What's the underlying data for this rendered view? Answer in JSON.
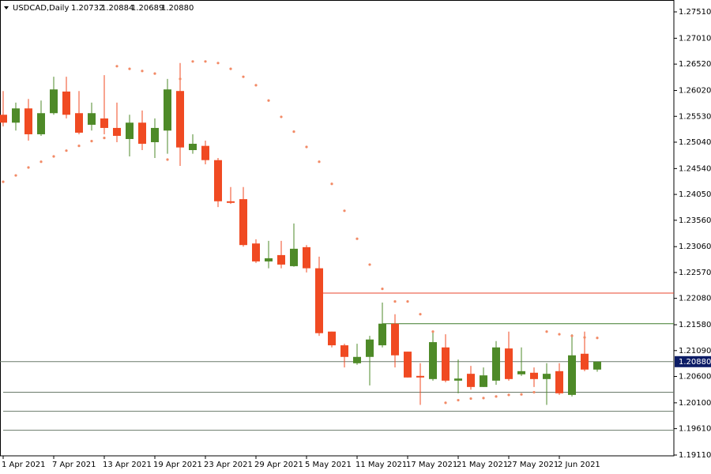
{
  "chart_data": {
    "type": "candlestick",
    "header": {
      "symbol": "USDCAD,Daily",
      "ohlc": [
        "1.20732",
        "1.20884",
        "1.20689",
        "1.20880"
      ]
    },
    "categories": [
      "1 Apr 2021",
      null,
      null,
      null,
      "7 Apr 2021",
      null,
      null,
      null,
      "13 Apr 2021",
      null,
      null,
      null,
      "19 Apr 2021",
      null,
      null,
      null,
      "23 Apr 2021",
      null,
      null,
      null,
      "29 Apr 2021",
      null,
      null,
      null,
      "5 May 2021",
      null,
      null,
      null,
      "11 May 2021",
      null,
      null,
      null,
      "17 May 2021",
      null,
      null,
      null,
      "21 May 2021",
      null,
      null,
      null,
      "27 May 2021",
      null,
      null,
      null,
      "2 Jun 2021",
      null,
      null,
      null
    ],
    "open": [
      1.2556,
      1.2541,
      1.2568,
      1.2519,
      1.2559,
      1.26,
      1.2559,
      1.2537,
      1.2549,
      1.2531,
      1.251,
      1.2541,
      1.2504,
      1.2526,
      1.2601,
      1.2489,
      1.2497,
      1.247,
      1.2392,
      1.2396,
      1.2312,
      1.2278,
      1.229,
      1.2269,
      1.2305,
      1.2265,
      1.2145,
      1.2119,
      1.2085,
      1.2097,
      1.2119,
      1.216,
      1.2107,
      1.2061,
      1.2055,
      1.2115,
      1.2052,
      1.2065,
      1.204,
      1.2052,
      1.2113,
      1.2064,
      1.2067,
      1.2055,
      1.207,
      1.2025,
      1.2103,
      1.2073
    ],
    "high": [
      1.2601,
      1.2579,
      1.2586,
      1.2583,
      1.2628,
      1.2628,
      1.2601,
      1.2579,
      1.2631,
      1.2579,
      1.2556,
      1.2564,
      1.2549,
      1.2624,
      1.2654,
      1.2519,
      1.2507,
      1.2474,
      1.2419,
      1.2419,
      1.232,
      1.2317,
      1.2317,
      1.235,
      1.2309,
      1.2287,
      1.2145,
      1.2122,
      1.2122,
      1.2137,
      1.22,
      1.2178,
      1.2107,
      1.2085,
      1.2145,
      1.214,
      1.2092,
      1.208,
      1.2077,
      1.2127,
      1.2145,
      1.2115,
      1.2077,
      1.2085,
      1.2085,
      1.214,
      1.2145,
      1.2088
    ],
    "low": [
      1.2534,
      1.2526,
      1.2507,
      1.2516,
      1.2556,
      1.2549,
      1.2519,
      1.2526,
      1.2519,
      1.2504,
      1.2477,
      1.2489,
      1.2474,
      1.2482,
      1.2459,
      1.2482,
      1.2462,
      1.2381,
      1.2387,
      1.2306,
      1.2275,
      1.2265,
      1.2265,
      1.2268,
      1.2257,
      1.2137,
      1.2115,
      1.2077,
      1.2082,
      1.2043,
      1.2115,
      1.2077,
      1.2058,
      1.2006,
      1.2052,
      1.2049,
      1.2028,
      1.2035,
      1.204,
      1.2044,
      1.2052,
      1.2061,
      1.204,
      1.2006,
      1.2025,
      1.2022,
      1.207,
      1.2069
    ],
    "close": [
      1.2541,
      1.2568,
      1.2519,
      1.2559,
      1.2604,
      1.2556,
      1.2522,
      1.2559,
      1.2531,
      1.2516,
      1.2541,
      1.2501,
      1.2531,
      1.2604,
      1.2494,
      1.2501,
      1.247,
      1.2392,
      1.2389,
      1.2309,
      1.2278,
      1.2284,
      1.2272,
      1.2302,
      1.2265,
      1.2142,
      1.2119,
      1.2097,
      1.2097,
      1.213,
      1.216,
      1.21,
      1.2058,
      1.2058,
      1.2125,
      1.2052,
      1.2056,
      1.204,
      1.2062,
      1.2115,
      1.2055,
      1.207,
      1.2055,
      1.2065,
      1.2028,
      1.21,
      1.2073,
      1.2088
    ],
    "up_color": "#4e8a28",
    "down_color": "#f04a22",
    "indicator_dots": {
      "color": "#f28a66",
      "values": [
        1.2429,
        1.2441,
        1.2456,
        1.2467,
        1.2477,
        1.2488,
        1.2497,
        1.2506,
        1.2512,
        1.2648,
        1.2643,
        1.2639,
        1.2634,
        1.2471,
        1.2624,
        1.2657,
        1.2657,
        1.2654,
        1.2643,
        1.2628,
        1.2612,
        1.2583,
        1.2552,
        1.2524,
        1.2495,
        1.2467,
        1.2425,
        1.2374,
        1.2321,
        1.2272,
        1.2226,
        1.2202,
        1.2202,
        1.2178,
        1.2145,
        1.201,
        1.2015,
        1.2018,
        1.2019,
        1.2022,
        1.2025,
        1.2026,
        1.203,
        1.2145,
        1.214,
        1.2137,
        1.2134,
        1.2133
      ]
    },
    "hlines": [
      {
        "value": 1.2218,
        "color": "#e8462c",
        "x_start": 25
      },
      {
        "value": 1.216,
        "color": "#3d7a2a",
        "x_start": 30
      },
      {
        "value": 1.203,
        "color": "#6a7a6a",
        "x_start": 0
      },
      {
        "value": 1.1994,
        "color": "#6a7a6a",
        "x_start": 0
      },
      {
        "value": 1.1958,
        "color": "#6a7a6a",
        "x_start": 0
      }
    ],
    "last_price": {
      "value": 1.2088,
      "label": "1.20880",
      "color": "#6a7a6a",
      "box_color": "#0c1c66"
    },
    "ylim": [
      1.19095,
      1.27735
    ],
    "yticks": [
      {
        "value": 1.2751,
        "label": "1.27510"
      },
      {
        "value": 1.2701,
        "label": "1.27010"
      },
      {
        "value": 1.2652,
        "label": "1.26520"
      },
      {
        "value": 1.2602,
        "label": "1.26020"
      },
      {
        "value": 1.2553,
        "label": "1.25530"
      },
      {
        "value": 1.2504,
        "label": "1.25040"
      },
      {
        "value": 1.2454,
        "label": "1.24540"
      },
      {
        "value": 1.2405,
        "label": "1.24050"
      },
      {
        "value": 1.2356,
        "label": "1.23560"
      },
      {
        "value": 1.2306,
        "label": "1.23060"
      },
      {
        "value": 1.2257,
        "label": "1.22570"
      },
      {
        "value": 1.2208,
        "label": "1.22080"
      },
      {
        "value": 1.2158,
        "label": "1.21580"
      },
      {
        "value": 1.2109,
        "label": "1.21090"
      },
      {
        "value": 1.206,
        "label": "1.20600"
      },
      {
        "value": 1.201,
        "label": "1.20100"
      },
      {
        "value": 1.1961,
        "label": "1.19610"
      },
      {
        "value": 1.1911,
        "label": "1.19110"
      }
    ]
  }
}
